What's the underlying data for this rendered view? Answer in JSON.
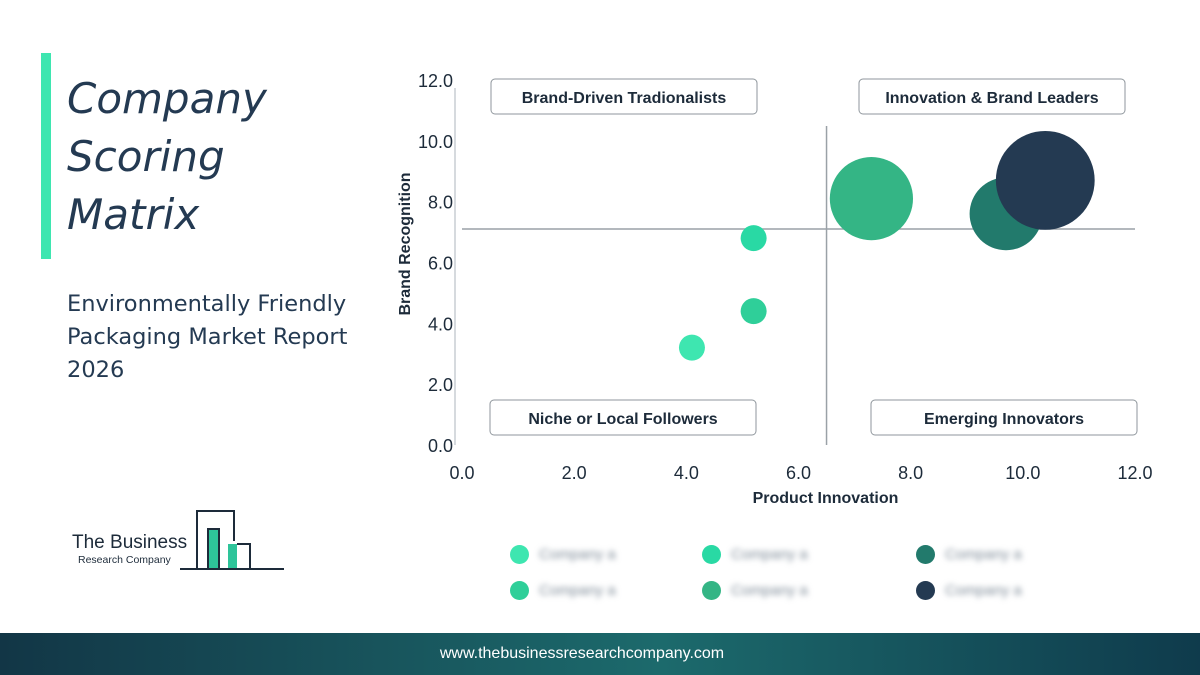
{
  "title_lines": [
    "Company",
    "Scoring",
    "Matrix"
  ],
  "subtitle_lines": [
    "Environmentally Friendly",
    "Packaging Market Report",
    "2026"
  ],
  "logo": {
    "line1": "The Business",
    "line2": "Research Company"
  },
  "footer": {
    "url": "www.thebusinessresearchcompany.com"
  },
  "quadrants": {
    "top_left": "Brand-Driven Tradionalists",
    "top_right": "Innovation & Brand Leaders",
    "bottom_left": "Niche or Local Followers",
    "bottom_right": "Emerging Innovators"
  },
  "legend": [
    {
      "label": "Company a",
      "color": "#3ee6b0"
    },
    {
      "label": "Company a",
      "color": "#29d9a4"
    },
    {
      "label": "Company a",
      "color": "#227a6c"
    },
    {
      "label": "Company a",
      "color": "#2fcf99"
    },
    {
      "label": "Company a",
      "color": "#34b585"
    },
    {
      "label": "Company a",
      "color": "#243a52"
    }
  ],
  "chart_data": {
    "type": "scatter",
    "xlabel": "Product Innovation",
    "ylabel": "Brand Recognition",
    "xlim": [
      0,
      12
    ],
    "ylim": [
      0,
      12
    ],
    "x_ticks": [
      "0.0",
      "2.0",
      "4.0",
      "6.0",
      "8.0",
      "10.0",
      "12.0"
    ],
    "y_ticks": [
      "0.0",
      "2.0",
      "4.0",
      "6.0",
      "8.0",
      "10.0",
      "12.0"
    ],
    "divider": {
      "x": 6.5,
      "y": 7.1
    },
    "grid": false,
    "points": [
      {
        "x": 4.1,
        "y": 3.2,
        "size": 1.0,
        "color": "#3ee6b0"
      },
      {
        "x": 5.2,
        "y": 4.4,
        "size": 1.0,
        "color": "#2fcf99"
      },
      {
        "x": 5.2,
        "y": 6.8,
        "size": 1.0,
        "color": "#29d9a4"
      },
      {
        "x": 7.3,
        "y": 8.1,
        "size": 3.2,
        "color": "#34b585"
      },
      {
        "x": 9.7,
        "y": 7.6,
        "size": 2.8,
        "color": "#227a6c"
      },
      {
        "x": 10.4,
        "y": 8.7,
        "size": 3.8,
        "color": "#243a52"
      }
    ]
  }
}
